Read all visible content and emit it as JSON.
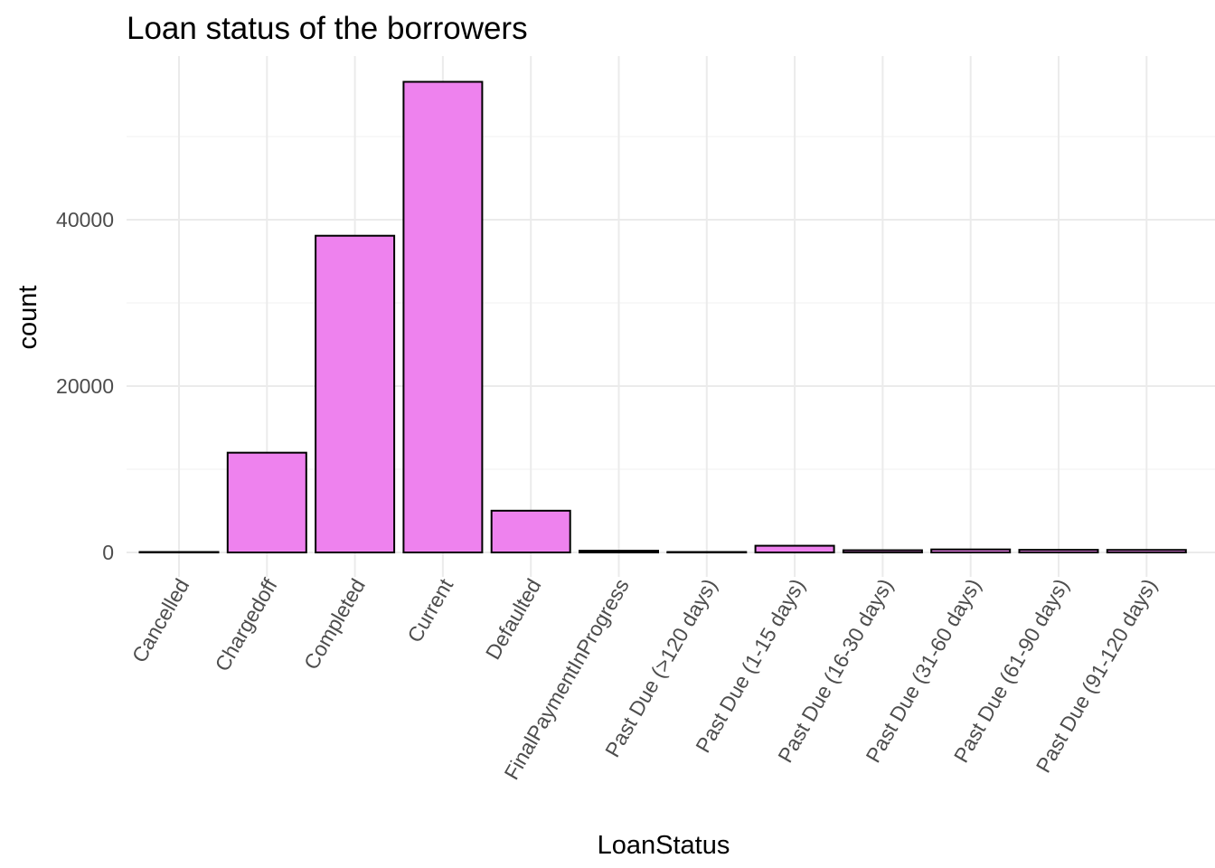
{
  "chart_data": {
    "type": "bar",
    "title": "Loan status of the borrowers",
    "xlabel": "LoanStatus",
    "ylabel": "count",
    "categories": [
      "Cancelled",
      "Chargedoff",
      "Completed",
      "Current",
      "Defaulted",
      "FinalPaymentInProgress",
      "Past Due (>120 days)",
      "Past Due (1-15 days)",
      "Past Due (16-30 days)",
      "Past Due (31-60 days)",
      "Past Due (61-90 days)",
      "Past Due (91-120 days)"
    ],
    "values": [
      5,
      11992,
      38074,
      56576,
      5018,
      205,
      16,
      806,
      265,
      361,
      313,
      304
    ],
    "ylim": [
      0,
      61000
    ],
    "yticks": [
      0,
      20000,
      40000
    ],
    "ytick_labels": [
      "0",
      "20000",
      "40000"
    ],
    "bar_fill": "#EE82EE",
    "bar_stroke": "#000000",
    "grid": true,
    "legend": "none"
  }
}
